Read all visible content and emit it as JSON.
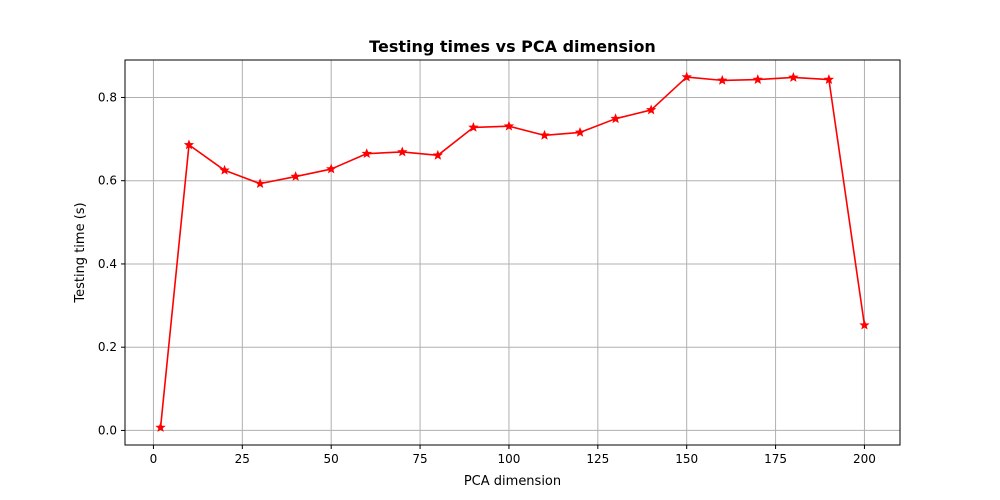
{
  "chart_data": {
    "type": "line",
    "title": "Testing times vs PCA dimension",
    "xlabel": "PCA dimension",
    "ylabel": "Testing time (s)",
    "xlim": [
      -8,
      210
    ],
    "ylim": [
      -0.035,
      0.89
    ],
    "xticks": [
      0,
      25,
      50,
      75,
      100,
      125,
      150,
      175,
      200
    ],
    "yticks": [
      0.0,
      0.2,
      0.4,
      0.6,
      0.8
    ],
    "xtick_labels": [
      "0",
      "25",
      "50",
      "75",
      "100",
      "125",
      "150",
      "175",
      "200"
    ],
    "ytick_labels": [
      "0.0",
      "0.2",
      "0.4",
      "0.6",
      "0.8"
    ],
    "grid": true,
    "legend": "none",
    "series": [
      {
        "color": "#ff0000",
        "marker": "star",
        "x": [
          2,
          10,
          20,
          30,
          40,
          50,
          60,
          70,
          80,
          90,
          100,
          110,
          120,
          130,
          140,
          150,
          160,
          170,
          180,
          190,
          200
        ],
        "y": [
          0.007,
          0.686,
          0.625,
          0.593,
          0.61,
          0.628,
          0.665,
          0.669,
          0.661,
          0.728,
          0.731,
          0.709,
          0.716,
          0.749,
          0.77,
          0.849,
          0.841,
          0.843,
          0.848,
          0.843,
          0.253
        ]
      }
    ]
  }
}
